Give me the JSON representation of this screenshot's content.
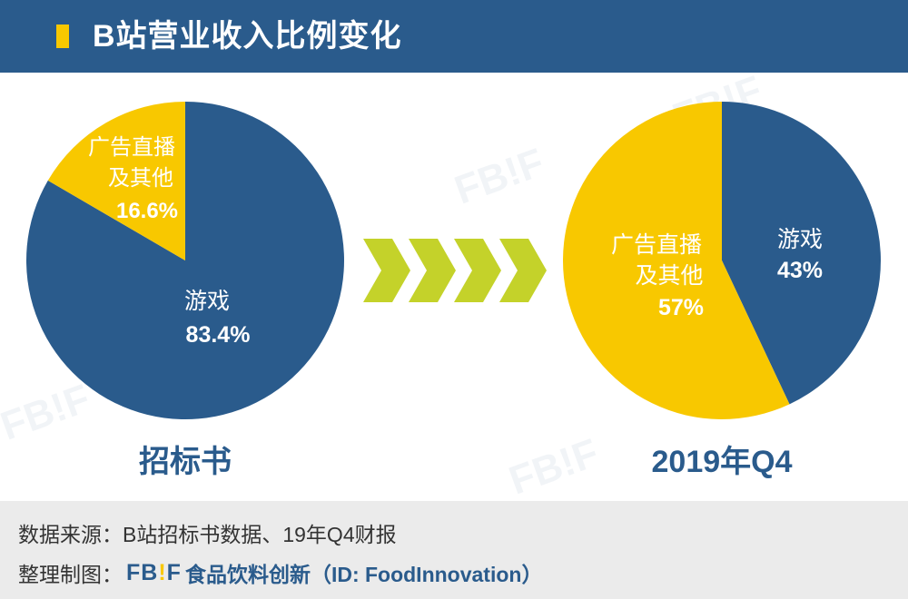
{
  "title": "B站营业收入比例变化",
  "colors": {
    "header": "#2a5b8c",
    "accent": "#f8c800",
    "game": "#2a5b8c",
    "ads": "#f8c800",
    "arrow": "#c4d22a",
    "footer": "#ebebeb"
  },
  "watermark": "FB!F",
  "chart_data": [
    {
      "type": "pie",
      "caption": "招标书",
      "slices": [
        {
          "label": "游戏",
          "value_label": "83.4%",
          "value": 83.4
        },
        {
          "label_lines": [
            "广告直播",
            "及其他"
          ],
          "value_label": "16.6%",
          "value": 16.6
        }
      ]
    },
    {
      "type": "pie",
      "caption": "2019年Q4",
      "slices": [
        {
          "label": "游戏",
          "value_label": "43%",
          "value": 43
        },
        {
          "label_lines": [
            "广告直播",
            "及其他"
          ],
          "value_label": "57%",
          "value": 57
        }
      ]
    }
  ],
  "footer": {
    "source_label": "数据来源：",
    "source_text": "B站招标书数据、19年Q4财报",
    "maker_label": "整理制图：",
    "logo_fb": "FB",
    "logo_bang": "!",
    "logo_f": "F",
    "maker_text": "食品饮料创新（ID: FoodInnovation）"
  }
}
